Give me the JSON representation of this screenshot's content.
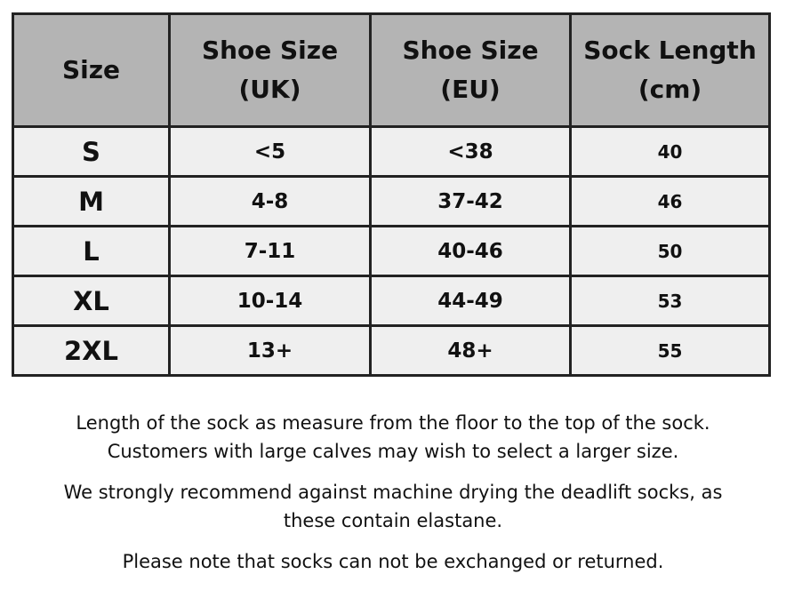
{
  "table": {
    "headers": [
      [
        "Size"
      ],
      [
        "Shoe Size",
        "(UK)"
      ],
      [
        "Shoe Size",
        "(EU)"
      ],
      [
        "Sock Length",
        "(cm)"
      ]
    ],
    "rows": [
      [
        "S",
        "<5",
        "<38",
        "40"
      ],
      [
        "M",
        "4-8",
        "37-42",
        "46"
      ],
      [
        "L",
        "7-11",
        "40-46",
        "50"
      ],
      [
        "XL",
        "10-14",
        "44-49",
        "53"
      ],
      [
        "2XL",
        "13+",
        "48+",
        "55"
      ]
    ]
  },
  "notes": [
    [
      "Length of the sock as measure from the floor to the top of the sock.",
      "Customers with large calves may wish to select a larger size."
    ],
    [
      "We strongly recommend against machine drying the deadlift socks, as",
      "these contain elastane."
    ],
    [
      "Please note that socks can not be exchanged or returned."
    ]
  ],
  "colors": {
    "header_bg": "#b4b4b4",
    "cell_bg": "#efefef",
    "border": "#222222"
  }
}
